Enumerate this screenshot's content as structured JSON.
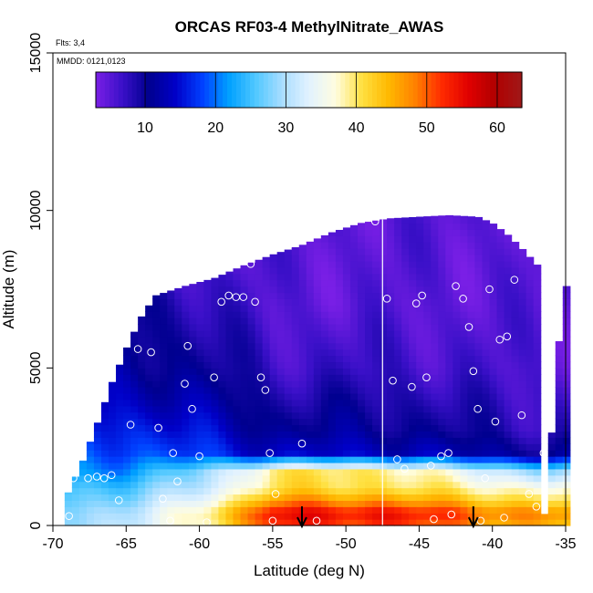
{
  "chart_data": {
    "type": "heatmap",
    "title": "ORCAS RF03-4 MethylNitrate_AWAS",
    "xlabel": "Latitude (deg N)",
    "ylabel": "Altitude (m)",
    "xlim": [
      -70,
      -35
    ],
    "ylim": [
      0,
      15000
    ],
    "x_ticks": [
      -70,
      -65,
      -60,
      -55,
      -50,
      -45,
      -40,
      -35
    ],
    "y_ticks": [
      0,
      5000,
      10000,
      15000
    ],
    "flights_note": "Flts: 3,4",
    "date_note": "MMDD: 0121,0123",
    "colorbar": {
      "min": 3,
      "max": 63.5,
      "ticks": [
        10,
        20,
        30,
        40,
        50,
        60
      ],
      "colors": [
        "#7a1fe6",
        "#3a10c8",
        "#00008f",
        "#0000c8",
        "#0040ff",
        "#00a0ff",
        "#50c8ff",
        "#a8ddff",
        "#e2f2ff",
        "#fffde0",
        "#ffe040",
        "#ffb800",
        "#ff8000",
        "#ff2a00",
        "#e00000",
        "#b00000",
        "#a01818"
      ]
    },
    "field_profile": {
      "altitudes_m": [
        0,
        400,
        800,
        1200,
        1700,
        2300,
        3000,
        4000,
        5000,
        6000,
        7000,
        8000,
        9000,
        10000
      ],
      "south_values": [
        30,
        29,
        27,
        25,
        21,
        19,
        17,
        14,
        12,
        11,
        10,
        8,
        7,
        6
      ],
      "mid_values": [
        52,
        55,
        47,
        41,
        40,
        14,
        11,
        9,
        7,
        6,
        5,
        5,
        5,
        5
      ],
      "north_values": [
        42,
        45,
        39,
        35,
        26,
        10,
        7,
        6,
        5,
        5,
        5,
        5,
        5,
        5
      ]
    },
    "coverage_top_m": [
      [
        -69,
        1000
      ],
      [
        -68,
        2000
      ],
      [
        -67,
        3200
      ],
      [
        -66,
        4500
      ],
      [
        -65,
        5600
      ],
      [
        -64,
        6600
      ],
      [
        -63,
        7300
      ],
      [
        -61,
        7600
      ],
      [
        -59,
        7850
      ],
      [
        -57,
        8250
      ],
      [
        -55,
        8600
      ],
      [
        -53,
        8900
      ],
      [
        -51,
        9300
      ],
      [
        -49,
        9600
      ],
      [
        -47,
        9750
      ],
      [
        -45,
        9800
      ],
      [
        -43,
        9850
      ],
      [
        -41,
        9800
      ],
      [
        -40,
        9600
      ],
      [
        -39,
        9250
      ],
      [
        -38,
        8800
      ],
      [
        -37,
        8300
      ],
      [
        -36,
        7900
      ],
      [
        -35.3,
        7600
      ]
    ],
    "coverage_top_south_edge_m": [
      [
        -69,
        400
      ],
      [
        -68.5,
        1500
      ]
    ],
    "coverage_bottom_m": [
      [
        -69,
        0
      ],
      [
        -36.5,
        0
      ]
    ],
    "coverage_east_edge": [
      [
        -35.2,
        7600
      ],
      [
        -35.8,
        3400
      ],
      [
        -36.2,
        2200
      ],
      [
        -36.5,
        0
      ]
    ],
    "gap_line_lat": -47.5,
    "sample_points": [
      [
        -68.9,
        300
      ],
      [
        -68.6,
        1500
      ],
      [
        -68.3,
        2200
      ],
      [
        -67.6,
        1500
      ],
      [
        -67.0,
        1550
      ],
      [
        -66.5,
        1500
      ],
      [
        -66.0,
        1600
      ],
      [
        -65.5,
        800
      ],
      [
        -64.7,
        3200
      ],
      [
        -64.2,
        5600
      ],
      [
        -63.3,
        5500
      ],
      [
        -62.8,
        3100
      ],
      [
        -62.5,
        850
      ],
      [
        -62.0,
        150
      ],
      [
        -61.8,
        2300
      ],
      [
        -61.5,
        1400
      ],
      [
        -61.0,
        4500
      ],
      [
        -60.8,
        5700
      ],
      [
        -60.5,
        3700
      ],
      [
        -60.0,
        2200
      ],
      [
        -59.5,
        100
      ],
      [
        -59.0,
        4700
      ],
      [
        -58.5,
        7100
      ],
      [
        -58.0,
        7300
      ],
      [
        -57.5,
        7250
      ],
      [
        -57.0,
        7250
      ],
      [
        -56.5,
        8300
      ],
      [
        -56.2,
        7100
      ],
      [
        -55.8,
        4700
      ],
      [
        -55.5,
        4300
      ],
      [
        -55.2,
        2300
      ],
      [
        -55.0,
        150
      ],
      [
        -54.8,
        1000
      ],
      [
        -53.0,
        2600
      ],
      [
        -52.0,
        150
      ],
      [
        -48.0,
        9650
      ],
      [
        -47.2,
        7200
      ],
      [
        -46.8,
        4600
      ],
      [
        -46.5,
        2100
      ],
      [
        -46.0,
        1800
      ],
      [
        -45.5,
        4400
      ],
      [
        -45.2,
        7050
      ],
      [
        -44.8,
        7300
      ],
      [
        -44.5,
        4700
      ],
      [
        -44.2,
        1900
      ],
      [
        -44.0,
        200
      ],
      [
        -43.5,
        2200
      ],
      [
        -43.0,
        2300
      ],
      [
        -42.8,
        350
      ],
      [
        -42.5,
        7600
      ],
      [
        -42.0,
        7200
      ],
      [
        -41.6,
        6300
      ],
      [
        -41.3,
        4900
      ],
      [
        -41.0,
        3700
      ],
      [
        -40.5,
        1500
      ],
      [
        -40.2,
        7500
      ],
      [
        -39.8,
        3300
      ],
      [
        -39.5,
        5900
      ],
      [
        -39.0,
        6000
      ],
      [
        -38.5,
        7800
      ],
      [
        -38.0,
        3500
      ],
      [
        -37.5,
        1000
      ],
      [
        -37.0,
        600
      ],
      [
        -36.5,
        2300
      ],
      [
        -36.0,
        4900
      ],
      [
        -35.6,
        7500
      ],
      [
        -40.8,
        150
      ],
      [
        -39.2,
        250
      ]
    ],
    "arrows_lat": [
      -53,
      -41.3
    ]
  }
}
